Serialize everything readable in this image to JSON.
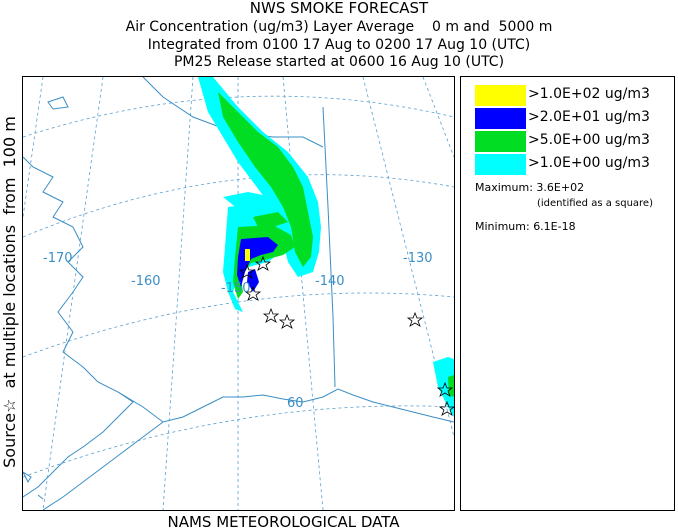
{
  "header": {
    "title": "NWS SMOKE FORECAST",
    "line2": "Air Concentration (ug/m3) Layer Average    0 m and  5000 m",
    "line3": "Integrated from 0100 17 Aug to 0200 17 Aug 10 (UTC)",
    "line4": "PM25 Release started at 0600 16 Aug 10 (UTC)"
  },
  "side_label": "Source☆  at multiple locations  from  100 m",
  "footer": "NAMS METEOROLOGICAL DATA",
  "map": {
    "longitude_labels": [
      "-170",
      "-160",
      "-150",
      "-140",
      "-130"
    ],
    "latitude_labels": [
      "60"
    ],
    "colors": {
      "coast": "#3a8ec6",
      "grid": "#5aa0d0",
      "level_1": "#00ffff",
      "level_2": "#00dd22",
      "level_3": "#0000ff",
      "level_4": "#ffff00"
    }
  },
  "legend": {
    "items": [
      {
        "label": ">1.0E+02 ug/m3",
        "color": "#ffff00"
      },
      {
        "label": ">2.0E+01 ug/m3",
        "color": "#0000ff"
      },
      {
        "label": ">5.0E+00 ug/m3",
        "color": "#00dd22"
      },
      {
        "label": ">1.0E+00 ug/m3",
        "color": "#00ffff"
      }
    ],
    "maximum_label": "Maximum:",
    "maximum_value": "3.6E+02",
    "maximum_note": "(identified as a square)",
    "minimum_label": "Minimum:",
    "minimum_value": "6.1E-18"
  }
}
